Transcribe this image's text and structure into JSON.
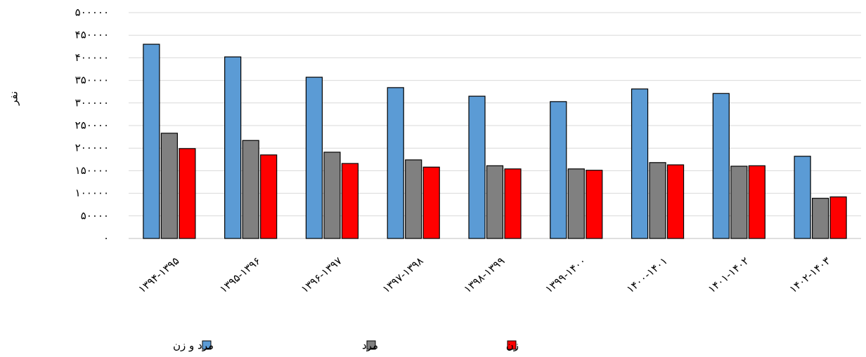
{
  "chart_data": {
    "type": "bar",
    "y_label": "نفر",
    "categories": [
      "۱۳۹۴-۱۳۹۵",
      "۱۳۹۵-۱۳۹۶",
      "۱۳۹۶-۱۳۹۷",
      "۱۳۹۷-۱۳۹۸",
      "۱۳۹۸-۱۳۹۹",
      "۱۳۹۹-۱۴۰۰",
      "۱۴۰۰-۱۴۰۱",
      "۱۴۰۱-۱۴۰۲",
      "۱۴۰۲-۱۴۰۳"
    ],
    "series": [
      {
        "name": "مرد و زن",
        "color": "#5b9bd5",
        "values": [
          430000,
          402000,
          357000,
          334000,
          315000,
          303000,
          331000,
          321000,
          182000
        ]
      },
      {
        "name": "مرد",
        "color": "#808080",
        "values": [
          233000,
          217000,
          191000,
          174000,
          161000,
          154000,
          168000,
          160000,
          89000
        ]
      },
      {
        "name": "زن",
        "color": "#ff0000",
        "values": [
          199000,
          185000,
          166000,
          158000,
          154000,
          151000,
          163000,
          161000,
          92000
        ]
      }
    ],
    "ylim": [
      0,
      500000
    ],
    "yticks": [
      {
        "value": 0,
        "label": "۰"
      },
      {
        "value": 50000,
        "label": "۵۰۰۰۰"
      },
      {
        "value": 100000,
        "label": "۱۰۰۰۰۰"
      },
      {
        "value": 150000,
        "label": "۱۵۰۰۰۰"
      },
      {
        "value": 200000,
        "label": "۲۰۰۰۰۰"
      },
      {
        "value": 250000,
        "label": "۲۵۰۰۰۰"
      },
      {
        "value": 300000,
        "label": "۳۰۰۰۰۰"
      },
      {
        "value": 350000,
        "label": "۳۵۰۰۰۰"
      },
      {
        "value": 400000,
        "label": "۴۰۰۰۰۰"
      },
      {
        "value": 450000,
        "label": "۴۵۰۰۰۰"
      },
      {
        "value": 500000,
        "label": "۵۰۰۰۰۰"
      }
    ],
    "grid": true
  }
}
